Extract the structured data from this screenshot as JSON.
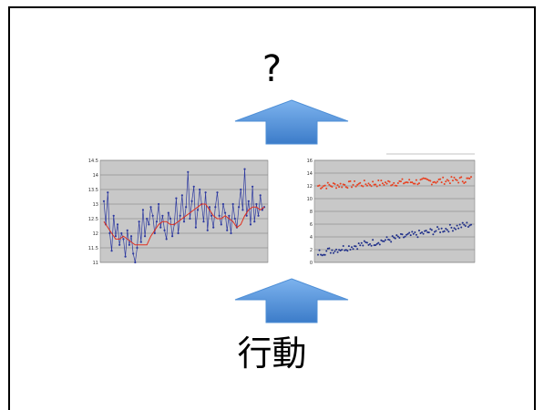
{
  "question_label": "?",
  "caption": "行動",
  "arrow_color": "#4f8fd6",
  "chart_data": [
    {
      "type": "line",
      "yticks": [
        "14.5",
        "14",
        "13.5",
        "13",
        "12.5",
        "12",
        "11.5",
        "11"
      ],
      "ylim": [
        11,
        14.5
      ],
      "grid": true,
      "series": [
        {
          "color": "#2e3aa0",
          "marker": "point",
          "values": [
            13.1,
            12.3,
            13.4,
            12.0,
            11.4,
            12.6,
            11.9,
            12.3,
            11.6,
            12.0,
            11.8,
            11.2,
            12.1,
            11.6,
            11.9,
            11.3,
            11.0,
            11.5,
            12.4,
            11.7,
            12.8,
            11.9,
            12.5,
            12.3,
            12.9,
            12.6,
            12.0,
            12.4,
            13.0,
            12.2,
            12.6,
            12.1,
            11.8,
            12.7,
            12.5,
            11.9,
            12.3,
            13.2,
            12.0,
            12.6,
            13.3,
            12.4,
            12.9,
            14.1,
            12.5,
            13.1,
            13.6,
            12.2,
            12.8,
            13.5,
            13.0,
            12.4,
            13.4,
            12.1,
            12.9,
            12.6,
            12.2,
            12.9,
            13.4,
            12.6,
            12.3,
            13.0,
            12.7,
            12.1,
            12.6,
            12.0,
            13.0,
            12.5,
            12.2,
            12.9,
            13.5,
            12.8,
            14.2,
            12.6,
            13.1,
            12.3,
            13.6,
            12.4,
            13.0,
            12.6,
            13.3,
            12.8,
            12.9
          ]
        },
        {
          "color": "#e03020",
          "marker": "none",
          "values": [
            12.4,
            12.2,
            12.0,
            11.8,
            11.8,
            11.9,
            11.8,
            11.7,
            11.6,
            11.6,
            11.6,
            11.6,
            11.9,
            12.1,
            12.3,
            12.4,
            12.4,
            12.3,
            12.3,
            12.4,
            12.5,
            12.6,
            12.7,
            12.8,
            12.9,
            13.0,
            13.0,
            12.8,
            12.6,
            12.5,
            12.5,
            12.6,
            12.5,
            12.4,
            12.2,
            12.3,
            12.6,
            12.8,
            12.9,
            12.9,
            12.8,
            12.9
          ]
        }
      ]
    },
    {
      "type": "scatter",
      "yticks": [
        "16",
        "14",
        "12",
        "10",
        "8",
        "6",
        "4",
        "2",
        "0"
      ],
      "ylim": [
        0,
        16
      ],
      "grid": true,
      "series": [
        {
          "color": "#e84020",
          "trend": [
            12.0,
            13.0
          ],
          "noise": 0.55,
          "count": 110
        },
        {
          "color": "#1f2f8a",
          "trend": [
            1.5,
            6.0
          ],
          "noise": 0.55,
          "count": 110
        }
      ]
    }
  ]
}
